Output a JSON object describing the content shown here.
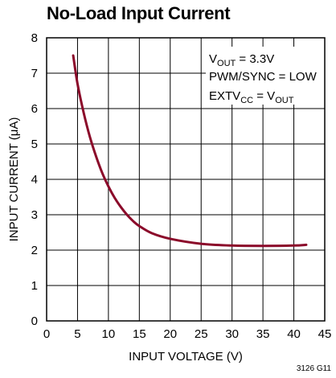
{
  "title": "No-Load Input Current",
  "figure_id": "3126 G11",
  "chart_data": {
    "type": "line",
    "title": "No-Load Input Current",
    "xlabel": "INPUT VOLTAGE (V)",
    "ylabel": "INPUT CURRENT (μA)",
    "xlim": [
      0,
      45
    ],
    "ylim": [
      0,
      8
    ],
    "xticks": [
      0,
      5,
      10,
      15,
      20,
      25,
      30,
      35,
      40,
      45
    ],
    "yticks": [
      0,
      1,
      2,
      3,
      4,
      5,
      6,
      7,
      8
    ],
    "grid": true,
    "annotations": [
      "V_OUT = 3.3V",
      "PWM/SYNC = LOW",
      "EXTV_CC = V_OUT"
    ],
    "series": [
      {
        "color": "#8b0a2a",
        "x": [
          4.3,
          5,
          6,
          7,
          8,
          9,
          10,
          11,
          12,
          13,
          14,
          15,
          17,
          20,
          25,
          30,
          35,
          40,
          42
        ],
        "y": [
          7.5,
          6.7,
          5.88,
          5.2,
          4.65,
          4.18,
          3.8,
          3.48,
          3.22,
          3.0,
          2.82,
          2.68,
          2.48,
          2.32,
          2.18,
          2.13,
          2.12,
          2.13,
          2.15
        ]
      }
    ]
  }
}
